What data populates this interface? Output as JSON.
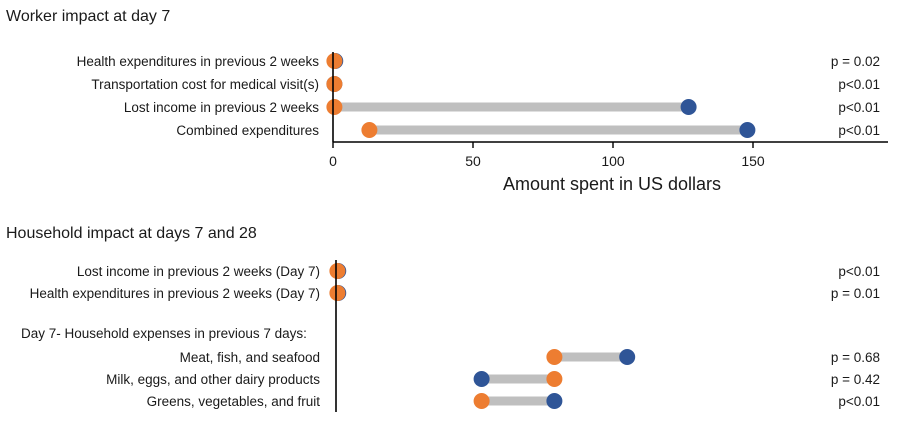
{
  "chart_data": [
    {
      "type": "dumbbell",
      "title": "Worker impact at day 7",
      "xlabel": "Amount spent in US dollars",
      "xlim": [
        0,
        195
      ],
      "xticks": [
        0,
        50,
        100,
        150
      ],
      "colors": {
        "blue": "#2f5597",
        "orange": "#ed7d31",
        "connector": "#bfbfbf"
      },
      "rows": [
        {
          "label": "Health expenditures in previous 2 weeks",
          "orange": 0.5,
          "blue": 0.8,
          "p": "p = 0.02"
        },
        {
          "label": "Transportation cost for medical visit(s)",
          "orange": 0.5,
          "blue": 0.5,
          "p": "p<0.01"
        },
        {
          "label": "Lost income in previous 2 weeks",
          "orange": 0.5,
          "blue": 127,
          "p": "p<0.01"
        },
        {
          "label": "Combined expenditures",
          "orange": 13,
          "blue": 148,
          "p": "p<0.01"
        }
      ]
    },
    {
      "type": "dumbbell",
      "title": "Household impact at days 7 and 28",
      "colors": {
        "blue": "#2f5597",
        "orange": "#ed7d31",
        "connector": "#bfbfbf"
      },
      "rows": [
        {
          "label": "Lost income in previous 2 weeks (Day 7)",
          "orange": 0.5,
          "blue": 0.8,
          "p": "p<0.01"
        },
        {
          "label": "Health expenditures in previous 2 weeks (Day 7)",
          "orange": 0.5,
          "blue": 0.8,
          "p": "p = 0.01"
        },
        {
          "label": "Day 7- Household expenses in previous 7 days:",
          "group_header": true
        },
        {
          "label": "Meat, fish, and seafood",
          "orange": 78,
          "blue": 104,
          "p": "p = 0.68"
        },
        {
          "label": "Milk, eggs, and other dairy products",
          "orange": 78,
          "blue": 52,
          "p": "p = 0.42"
        },
        {
          "label": "Greens, vegetables, and fruit",
          "orange": 52,
          "blue": 78,
          "p": "p<0.01"
        }
      ]
    }
  ]
}
